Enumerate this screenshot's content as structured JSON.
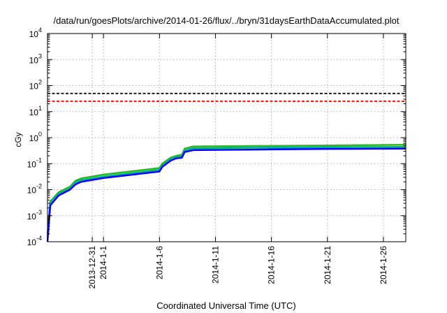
{
  "chart_data": {
    "type": "line",
    "title": "/data/run/goesPlots/archive/2014-01-26/flux/../bryn/31daysEarthDataAccumulated.plot",
    "xlabel": "Coordinated Universal Time (UTC)",
    "ylabel": "cGy",
    "yscale": "log",
    "ylim": [
      0.0001,
      10000
    ],
    "xlim": [
      "2013-12-27",
      "2014-01-28"
    ],
    "grid": true,
    "legend": "none",
    "x_ticks": [
      "2013-12-31",
      "2014-1-1",
      "2014-1-6",
      "2014-1-11",
      "2014-1-16",
      "2014-1-21",
      "2014-1-26"
    ],
    "y_ticks": [
      {
        "value": 0.0001,
        "base": "10",
        "exp": "-4"
      },
      {
        "value": 0.001,
        "base": "10",
        "exp": "-3"
      },
      {
        "value": 0.01,
        "base": "10",
        "exp": "-2"
      },
      {
        "value": 0.1,
        "base": "10",
        "exp": "-1"
      },
      {
        "value": 1,
        "base": "10",
        "exp": "0"
      },
      {
        "value": 10,
        "base": "10",
        "exp": "1"
      },
      {
        "value": 100,
        "base": "10",
        "exp": "2"
      },
      {
        "value": 1000,
        "base": "10",
        "exp": "3"
      },
      {
        "value": 10000,
        "base": "10",
        "exp": "4"
      }
    ],
    "thresholds": [
      {
        "value": 50,
        "color": "#000000"
      },
      {
        "value": 25,
        "color": "#ff0000"
      }
    ],
    "series": [
      {
        "color": "#22bb22",
        "x": [
          "2013-12-27",
          "2013-12-27 06:00",
          "2013-12-28",
          "2013-12-29",
          "2013-12-29 12:00",
          "2013-12-30",
          "2014-1-1",
          "2014-1-6",
          "2014-1-6 06:00",
          "2014-1-7",
          "2014-1-7 12:00",
          "2014-1-8",
          "2014-1-8 06:00",
          "2014-1-9",
          "2014-1-15",
          "2014-1-21",
          "2014-1-28"
        ],
        "y": [
          0.0002,
          0.0035,
          0.008,
          0.013,
          0.022,
          0.027,
          0.038,
          0.068,
          0.1,
          0.17,
          0.2,
          0.22,
          0.38,
          0.46,
          0.48,
          0.5,
          0.53
        ]
      },
      {
        "color": "#00aaaa",
        "x": [
          "2013-12-27",
          "2013-12-27 06:00",
          "2013-12-28",
          "2013-12-29",
          "2013-12-29 12:00",
          "2013-12-30",
          "2014-1-1",
          "2014-1-6",
          "2014-1-6 06:00",
          "2014-1-7",
          "2014-1-7 12:00",
          "2014-1-8",
          "2014-1-8 06:00",
          "2014-1-9",
          "2014-1-15",
          "2014-1-21",
          "2014-1-28"
        ],
        "y": [
          0.00015,
          0.003,
          0.007,
          0.011,
          0.019,
          0.023,
          0.032,
          0.058,
          0.085,
          0.15,
          0.18,
          0.19,
          0.32,
          0.39,
          0.41,
          0.43,
          0.44
        ]
      },
      {
        "color": "#0000ff",
        "x": [
          "2013-12-27",
          "2013-12-27 06:00",
          "2013-12-28",
          "2013-12-29",
          "2013-12-29 12:00",
          "2013-12-30",
          "2014-1-1",
          "2014-1-6",
          "2014-1-6 06:00",
          "2014-1-7",
          "2014-1-7 12:00",
          "2014-1-8",
          "2014-1-8 06:00",
          "2014-1-9",
          "2014-1-15",
          "2014-1-21",
          "2014-1-28"
        ],
        "y": [
          0.0001,
          0.0025,
          0.006,
          0.01,
          0.016,
          0.02,
          0.028,
          0.05,
          0.075,
          0.13,
          0.16,
          0.17,
          0.28,
          0.33,
          0.35,
          0.37,
          0.38
        ]
      }
    ]
  }
}
